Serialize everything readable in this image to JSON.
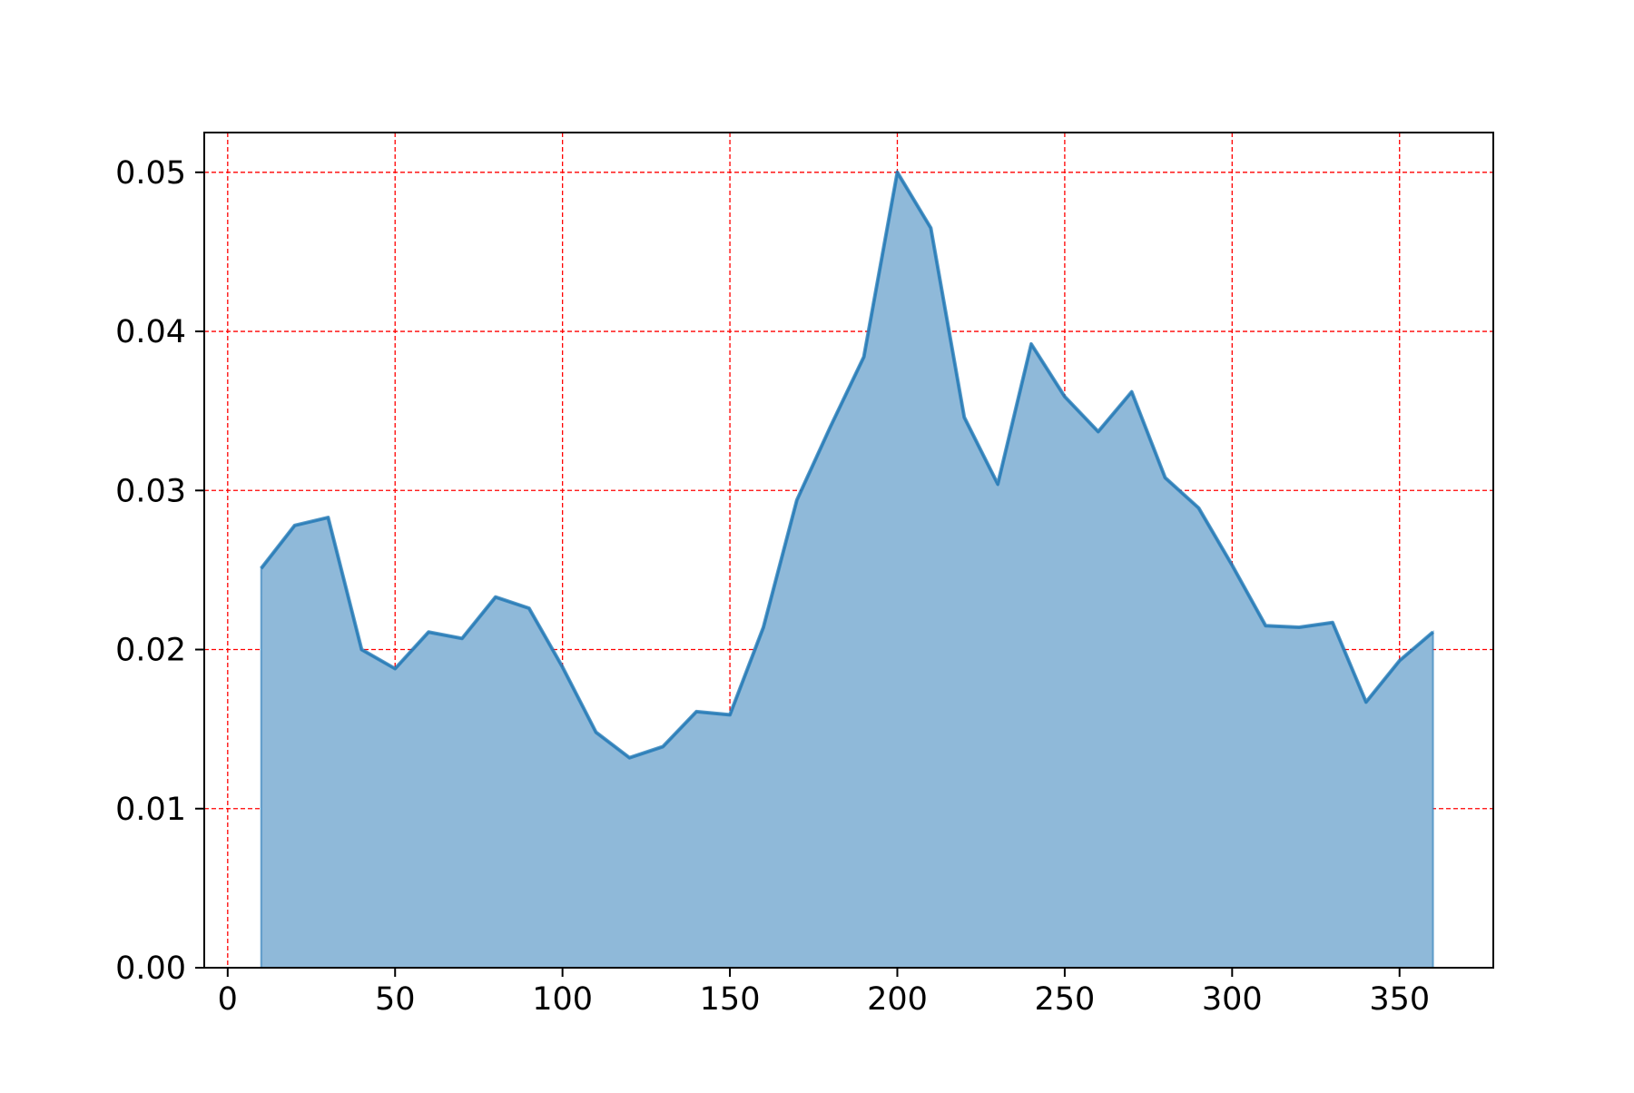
{
  "chart_data": {
    "type": "area",
    "title": "",
    "xlabel": "",
    "ylabel": "",
    "xlim": [
      -7,
      378
    ],
    "ylim": [
      0,
      0.0525
    ],
    "x_ticks": [
      {
        "value": 0,
        "label": "0"
      },
      {
        "value": 50,
        "label": "50"
      },
      {
        "value": 100,
        "label": "100"
      },
      {
        "value": 150,
        "label": "150"
      },
      {
        "value": 200,
        "label": "200"
      },
      {
        "value": 250,
        "label": "250"
      },
      {
        "value": 300,
        "label": "300"
      },
      {
        "value": 350,
        "label": "350"
      }
    ],
    "y_ticks": [
      {
        "value": 0,
        "label": "0.00"
      },
      {
        "value": 0.01,
        "label": "0.01"
      },
      {
        "value": 0.02,
        "label": "0.02"
      },
      {
        "value": 0.03,
        "label": "0.03"
      },
      {
        "value": 0.04,
        "label": "0.04"
      },
      {
        "value": 0.05,
        "label": "0.05"
      }
    ],
    "grid": true,
    "grid_color": "#ff0000",
    "series": [
      {
        "color": "#1f77b4",
        "fill_color": "#8fb9d9",
        "x": [
          10,
          20,
          30,
          40,
          50,
          60,
          70,
          80,
          90,
          100,
          110,
          120,
          130,
          140,
          150,
          160,
          170,
          180,
          190,
          200,
          210,
          220,
          230,
          240,
          250,
          260,
          270,
          280,
          290,
          300,
          310,
          320,
          330,
          340,
          350,
          360
        ],
        "values": [
          0.0251,
          0.0278,
          0.0283,
          0.02,
          0.0188,
          0.0211,
          0.0207,
          0.0233,
          0.0226,
          0.0189,
          0.0148,
          0.0132,
          0.0139,
          0.0161,
          0.0159,
          0.0214,
          0.0294,
          0.034,
          0.0384,
          0.05,
          0.0465,
          0.0346,
          0.0304,
          0.0392,
          0.0359,
          0.0337,
          0.0362,
          0.0308,
          0.0289,
          0.0253,
          0.0215,
          0.0214,
          0.0217,
          0.0167,
          0.0193,
          0.0211
        ]
      }
    ]
  }
}
